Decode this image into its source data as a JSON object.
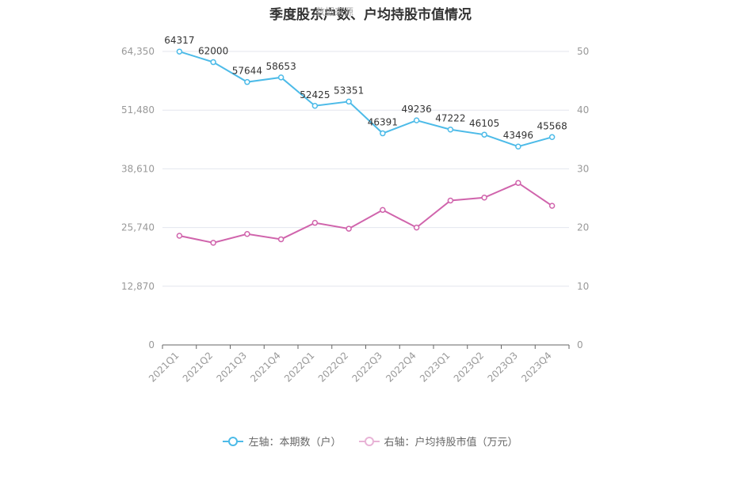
{
  "title": "季度股东户数、户均持股市值情况",
  "watermark": "数据来源",
  "legend": {
    "left_series": "左轴：本期数（户）",
    "right_series": "右轴：户均持股市值（万元）"
  },
  "colors": {
    "left_series": "#4dbbe8",
    "right_series": "#d064ac",
    "legend_right_faded": "#e8b3d6"
  },
  "chart_data": {
    "type": "line",
    "categories": [
      "2021Q1",
      "2021Q2",
      "2021Q3",
      "2021Q4",
      "2022Q1",
      "2022Q2",
      "2022Q3",
      "2022Q4",
      "2023Q1",
      "2023Q2",
      "2023Q3",
      "2023Q4"
    ],
    "y_left": {
      "ylim": [
        0,
        64350
      ],
      "ticks": [
        "0",
        "12,870",
        "25,740",
        "38,610",
        "51,480",
        "64,350"
      ]
    },
    "y_right": {
      "ylim": [
        0,
        50
      ],
      "ticks": [
        "0",
        "10",
        "20",
        "30",
        "40",
        "50"
      ]
    },
    "grid": true,
    "legend_position": "bottom",
    "series": [
      {
        "name": "左轴：本期数（户）",
        "axis": "left",
        "values": [
          64317,
          62000,
          57644,
          58653,
          52425,
          53351,
          46391,
          49236,
          47222,
          46105,
          43496,
          45568
        ],
        "labels": [
          "64317",
          "62000",
          "57644",
          "58653",
          "52425",
          "53351",
          "46391",
          "49236",
          "47222",
          "46105",
          "43496",
          "45568"
        ]
      },
      {
        "name": "右轴：户均持股市值（万元）",
        "axis": "right",
        "values": [
          18.6,
          17.4,
          18.9,
          18.0,
          20.8,
          19.8,
          23.0,
          20.0,
          24.6,
          25.1,
          27.6,
          23.7
        ]
      }
    ]
  }
}
